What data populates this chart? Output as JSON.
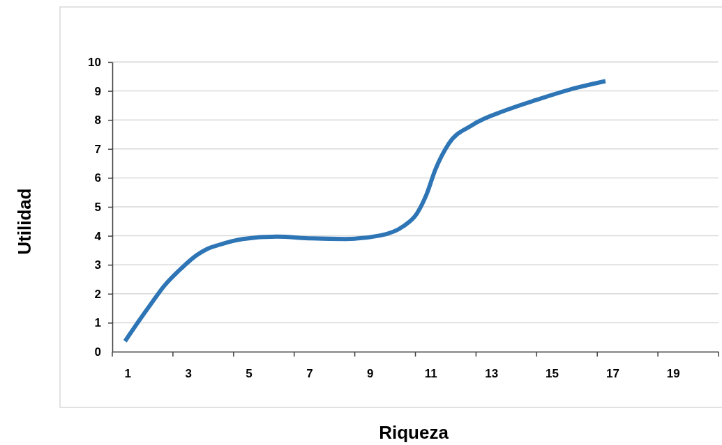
{
  "chart_data": {
    "type": "line",
    "xlabel": "Riqueza",
    "ylabel": "Utilidad",
    "xlim": [
      0.5,
      20.5
    ],
    "xticks": [
      1,
      3,
      5,
      7,
      9,
      11,
      13,
      15,
      17,
      19
    ],
    "ylim": [
      0,
      10
    ],
    "yticks": [
      0,
      1,
      2,
      3,
      4,
      5,
      6,
      7,
      8,
      9,
      10
    ],
    "grid": "y",
    "marker": "none",
    "line_style": "solid",
    "series": [
      {
        "color": "#2e75b6",
        "x": [
          0.92,
          1.39,
          1.77,
          2.22,
          2.75,
          3.28,
          3.62,
          4.03,
          4.8,
          5.93,
          7.07,
          8.2,
          9.34,
          10.1,
          10.55,
          10.86,
          11.16,
          11.6,
          12.37,
          13.5,
          14.64,
          15.78,
          16.77
        ],
        "values": [
          0.36,
          1.08,
          1.64,
          2.28,
          2.85,
          3.33,
          3.54,
          3.69,
          3.89,
          3.97,
          3.91,
          3.89,
          4.01,
          4.33,
          4.77,
          5.41,
          6.29,
          7.18,
          7.82,
          8.34,
          8.74,
          9.1,
          9.34
        ]
      }
    ]
  }
}
